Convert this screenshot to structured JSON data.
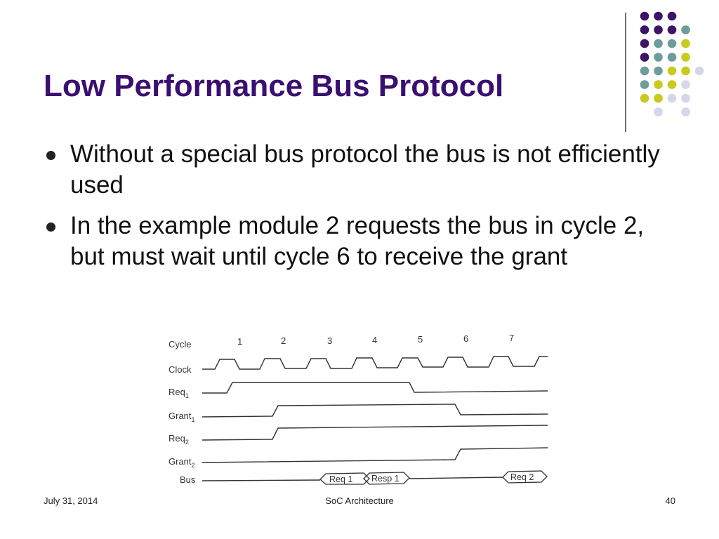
{
  "slide": {
    "title": "Low Performance Bus Protocol",
    "bullets": [
      "Without a special bus protocol the bus is not efficiently used",
      "In the example module 2 requests the bus in cycle 2, but must wait until cycle 6 to receive the grant"
    ]
  },
  "diagram": {
    "cycle_label": "Cycle",
    "cycles": [
      "1",
      "2",
      "3",
      "4",
      "5",
      "6",
      "7"
    ],
    "signals": [
      {
        "name": "Clock",
        "sub": ""
      },
      {
        "name": "Req",
        "sub": "1"
      },
      {
        "name": "Grant",
        "sub": "1"
      },
      {
        "name": "Req",
        "sub": "2"
      },
      {
        "name": "Grant",
        "sub": "2"
      },
      {
        "name": "Bus",
        "sub": ""
      }
    ],
    "bus_labels": [
      "Req 1",
      "Resp 1",
      "Req 2"
    ]
  },
  "colors": {
    "title": "#3b0f72",
    "dot_purple": "#3d1466",
    "dot_teal": "#6e9c9a",
    "dot_yellow": "#c9c91e",
    "dot_lavender": "#d6d6ea"
  },
  "footer": {
    "date": "July 31, 2014",
    "course": "SoC Architecture",
    "page": "40"
  }
}
